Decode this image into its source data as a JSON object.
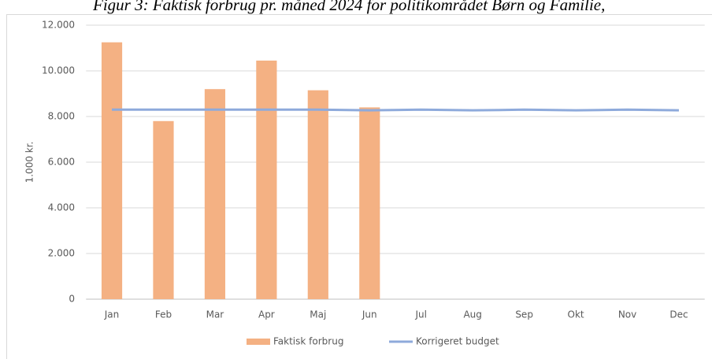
{
  "chart_data": {
    "type": "bar",
    "title": "Figur 3: Faktisk forbrug pr. måned 2024 for politikområdet Børn og Familie,",
    "y_label": "1.000 kr.",
    "categories": [
      "Jan",
      "Feb",
      "Mar",
      "Apr",
      "Maj",
      "Jun",
      "Jul",
      "Aug",
      "Sep",
      "Okt",
      "Nov",
      "Dec"
    ],
    "series": [
      {
        "name": "Faktisk forbrug",
        "type": "bar",
        "color": "#f4b183",
        "values": [
          11250,
          7800,
          9200,
          10450,
          9150,
          8400,
          null,
          null,
          null,
          null,
          null,
          null
        ]
      },
      {
        "name": "Korrigeret budget",
        "type": "line",
        "color": "#8eaadb",
        "values": [
          8300,
          8300,
          8300,
          8300,
          8300,
          8270,
          8300,
          8270,
          8300,
          8270,
          8300,
          8270
        ]
      }
    ],
    "ylim": [
      0,
      12000
    ],
    "yticks": [
      0,
      {
        "value": 2000,
        "label": "2.000"
      },
      {
        "value": 4000,
        "label": "4.000"
      },
      {
        "value": 6000,
        "label": "6.000"
      },
      {
        "value": 8000,
        "label": "8.000"
      },
      {
        "value": 10000,
        "label": "10.000"
      },
      {
        "value": 12000,
        "label": "12.000"
      }
    ],
    "grid": true,
    "legend": "bottom"
  }
}
